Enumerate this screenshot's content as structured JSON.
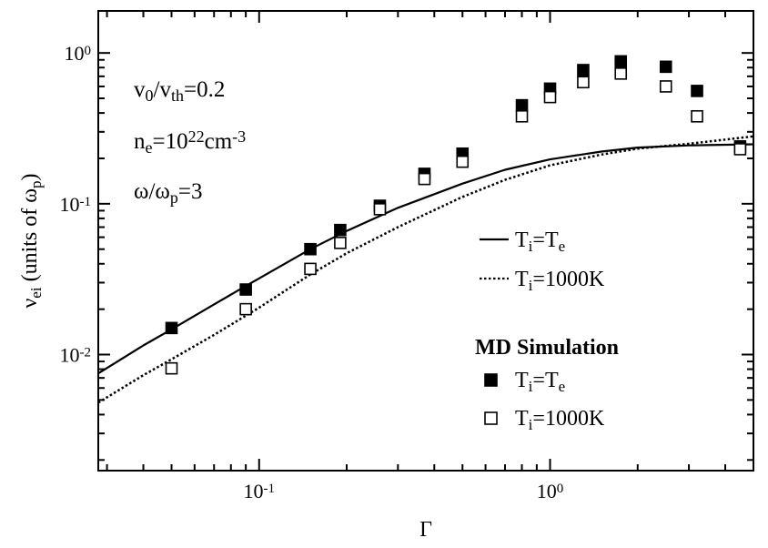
{
  "chart_data": {
    "type": "scatter",
    "title": "",
    "xlabel": "Γ",
    "ylabel": {
      "main": "ν",
      "sub": "ei",
      "units_prefix": " (units of ω",
      "units_sub": "p",
      "units_suffix": ")"
    },
    "xscale": "log",
    "yscale": "log",
    "xlim": [
      0.028,
      5.0
    ],
    "ylim": [
      0.0017,
      1.9
    ],
    "grid": false,
    "x_ticks": [
      {
        "value": 0.1,
        "base": "10",
        "exp": "-1"
      },
      {
        "value": 1.0,
        "base": "10",
        "exp": "0"
      }
    ],
    "y_ticks": [
      {
        "value": 0.01,
        "base": "10",
        "exp": "-2"
      },
      {
        "value": 0.1,
        "base": "10",
        "exp": "-1"
      },
      {
        "value": 1.0,
        "base": "10",
        "exp": "0"
      }
    ],
    "annotations": [
      {
        "parts": [
          {
            "t": "v"
          },
          {
            "t": "0",
            "sub": true
          },
          {
            "t": "/v"
          },
          {
            "t": "th",
            "sub": true
          },
          {
            "t": "=0.2"
          }
        ]
      },
      {
        "parts": [
          {
            "t": "n"
          },
          {
            "t": "e",
            "sub": true
          },
          {
            "t": "=10"
          },
          {
            "t": "22",
            "sup": true
          },
          {
            "t": "cm"
          },
          {
            "t": "-3",
            "sup": true
          }
        ]
      },
      {
        "parts": [
          {
            "t": "ω/ω"
          },
          {
            "t": "p",
            "sub": true
          },
          {
            "t": "=3"
          }
        ]
      }
    ],
    "legend": {
      "placement": "bottom-right",
      "simulation_heading": "MD Simulation",
      "entries": [
        {
          "ref": "line_te",
          "parts": [
            {
              "t": "T"
            },
            {
              "t": "i",
              "sub": true
            },
            {
              "t": "=T"
            },
            {
              "t": "e",
              "sub": true
            }
          ]
        },
        {
          "ref": "line_1000",
          "parts": [
            {
              "t": "T"
            },
            {
              "t": "i",
              "sub": true
            },
            {
              "t": "=1000K"
            }
          ]
        },
        {
          "ref": "md_te",
          "parts": [
            {
              "t": "T"
            },
            {
              "t": "i",
              "sub": true
            },
            {
              "t": "=T"
            },
            {
              "t": "e",
              "sub": true
            }
          ]
        },
        {
          "ref": "md_1000",
          "parts": [
            {
              "t": "T"
            },
            {
              "t": "i",
              "sub": true
            },
            {
              "t": "=1000K"
            }
          ]
        }
      ]
    },
    "series": [
      {
        "id": "line_te",
        "kind": "line",
        "style": "solid",
        "color": "#000000",
        "x": [
          0.028,
          0.04,
          0.05,
          0.07,
          0.09,
          0.1,
          0.15,
          0.2,
          0.3,
          0.5,
          0.7,
          1.0,
          1.5,
          2.0,
          3.0,
          5.0
        ],
        "y": [
          0.0075,
          0.0115,
          0.0147,
          0.0215,
          0.0285,
          0.032,
          0.05,
          0.066,
          0.094,
          0.136,
          0.168,
          0.197,
          0.222,
          0.236,
          0.244,
          0.248
        ]
      },
      {
        "id": "line_1000",
        "kind": "line",
        "style": "dotted",
        "color": "#000000",
        "x": [
          0.028,
          0.04,
          0.05,
          0.07,
          0.1,
          0.15,
          0.2,
          0.3,
          0.5,
          0.7,
          1.0,
          1.5,
          2.0,
          3.0,
          5.0
        ],
        "y": [
          0.0048,
          0.0073,
          0.0093,
          0.0135,
          0.0205,
          0.034,
          0.047,
          0.07,
          0.111,
          0.144,
          0.18,
          0.212,
          0.232,
          0.25,
          0.28
        ]
      },
      {
        "id": "md_te",
        "kind": "scatter",
        "marker": "filled-square",
        "color": "#000000",
        "x": [
          0.05,
          0.09,
          0.15,
          0.19,
          0.26,
          0.37,
          0.5,
          0.8,
          1.0,
          1.3,
          1.75,
          2.5,
          3.2,
          4.5
        ],
        "y": [
          0.015,
          0.027,
          0.05,
          0.067,
          0.097,
          0.158,
          0.215,
          0.45,
          0.58,
          0.77,
          0.88,
          0.81,
          0.56,
          0.24
        ]
      },
      {
        "id": "md_1000",
        "kind": "scatter",
        "marker": "open-square",
        "color": "#000000",
        "x": [
          0.05,
          0.09,
          0.15,
          0.19,
          0.26,
          0.37,
          0.5,
          0.8,
          1.0,
          1.3,
          1.75,
          2.5,
          3.2,
          4.5
        ],
        "y": [
          0.0081,
          0.02,
          0.037,
          0.055,
          0.092,
          0.146,
          0.19,
          0.38,
          0.51,
          0.64,
          0.73,
          0.6,
          0.38,
          0.23
        ]
      }
    ]
  }
}
